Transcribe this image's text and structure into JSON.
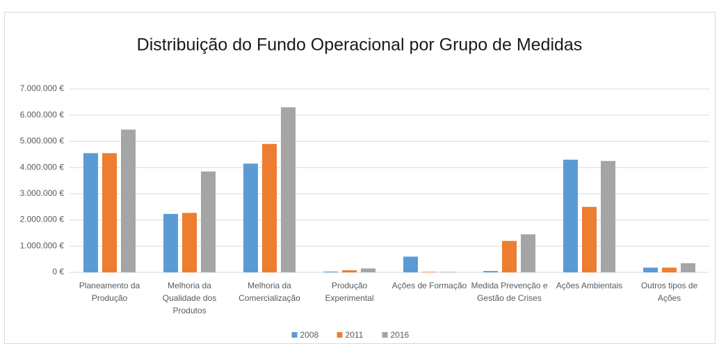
{
  "chart_data": {
    "type": "bar",
    "title": "Distribuição do Fundo Operacional por Grupo de Medidas",
    "categories": [
      "Planeamento da Produção",
      "Melhoria da Qualidade dos Produtos",
      "Melhoria da Comercialização",
      "Produção Experimental",
      "Ações de Formação",
      "Medida Prevenção e Gestão de Crises",
      "Ações Ambientais",
      "Outros tipos de Ações"
    ],
    "series": [
      {
        "name": "2008",
        "color": "#5b9bd5",
        "values": [
          4550000,
          2230000,
          4150000,
          30000,
          600000,
          50000,
          4300000,
          180000
        ]
      },
      {
        "name": "2011",
        "color": "#ed7d31",
        "values": [
          4550000,
          2270000,
          4900000,
          80000,
          20000,
          1200000,
          2500000,
          180000
        ]
      },
      {
        "name": "2016",
        "color": "#a5a5a5",
        "values": [
          5450000,
          3850000,
          6300000,
          150000,
          20000,
          1450000,
          4250000,
          350000
        ]
      }
    ],
    "ylim": [
      0,
      7000000
    ],
    "yticks": [
      {
        "value": 0,
        "label": "0 €"
      },
      {
        "value": 1000000,
        "label": "1.000.000 €"
      },
      {
        "value": 2000000,
        "label": "2.000.000 €"
      },
      {
        "value": 3000000,
        "label": "3.000.000 €"
      },
      {
        "value": 4000000,
        "label": "4.000.000 €"
      },
      {
        "value": 5000000,
        "label": "5.000.000 €"
      },
      {
        "value": 6000000,
        "label": "6.000.000 €"
      },
      {
        "value": 7000000,
        "label": "7.000.000 €"
      }
    ],
    "grid": true,
    "legend": "bottom"
  }
}
